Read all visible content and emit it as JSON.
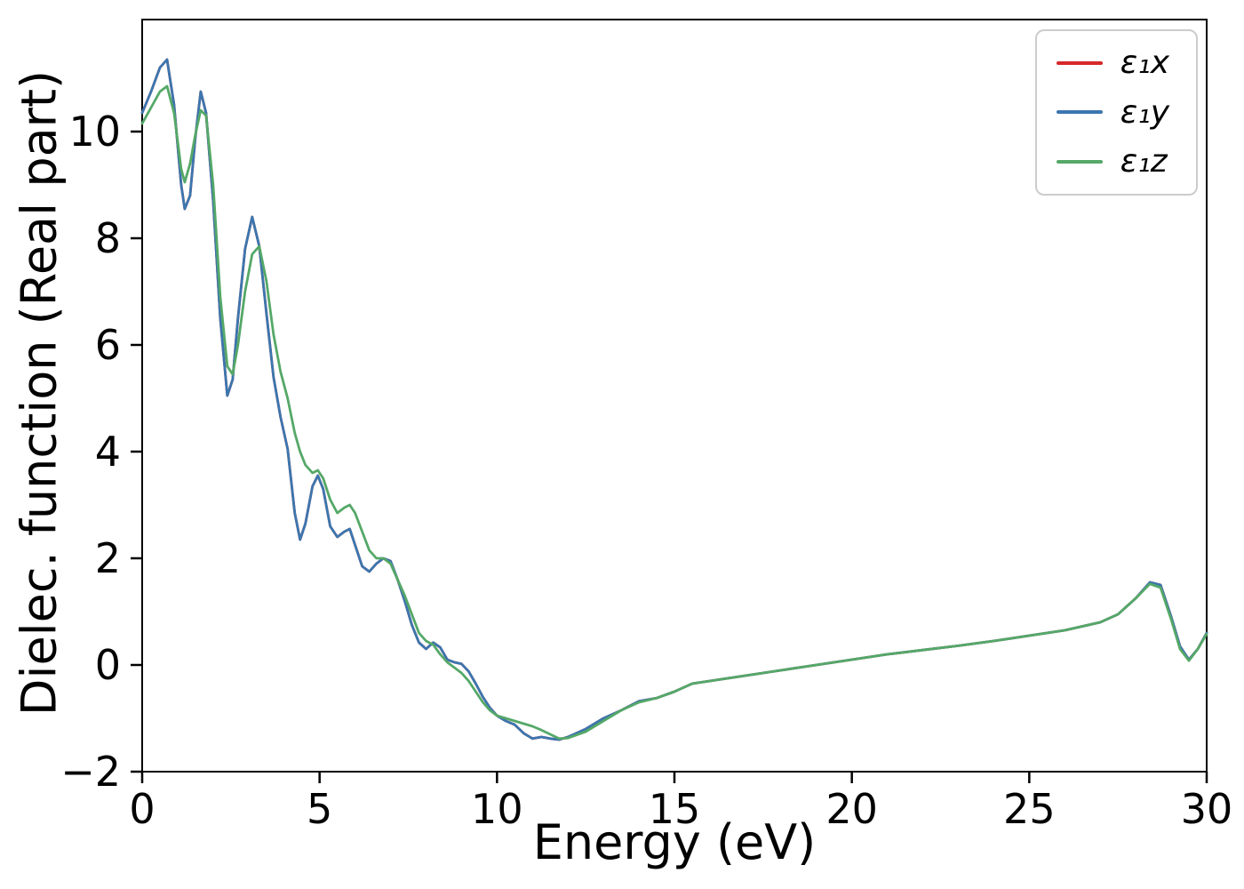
{
  "chart_data": {
    "type": "line",
    "title": "",
    "xlabel": "Energy (eV)",
    "ylabel": "Dielec. function (Real part)",
    "xlim": [
      0,
      30
    ],
    "ylim": [
      -2,
      12.1
    ],
    "grid": false,
    "legend_position": "upper right",
    "xticks": [
      0,
      5,
      10,
      15,
      20,
      25,
      30
    ],
    "xtick_labels": [
      "0",
      "5",
      "10",
      "15",
      "20",
      "25",
      "30"
    ],
    "yticks": [
      -2,
      0,
      2,
      4,
      6,
      8,
      10
    ],
    "ytick_labels": [
      "−2",
      "0",
      "2",
      "4",
      "6",
      "8",
      "10"
    ],
    "x": [
      0,
      0.25,
      0.5,
      0.7,
      0.9,
      1.1,
      1.2,
      1.35,
      1.5,
      1.65,
      1.8,
      2.0,
      2.2,
      2.4,
      2.55,
      2.7,
      2.9,
      3.1,
      3.3,
      3.5,
      3.7,
      3.9,
      4.1,
      4.3,
      4.45,
      4.6,
      4.8,
      4.95,
      5.1,
      5.3,
      5.5,
      5.7,
      5.85,
      6.0,
      6.2,
      6.4,
      6.6,
      6.8,
      7.0,
      7.2,
      7.4,
      7.6,
      7.8,
      8.0,
      8.2,
      8.4,
      8.6,
      8.8,
      9.0,
      9.2,
      9.4,
      9.6,
      9.8,
      10.0,
      10.25,
      10.5,
      10.75,
      11.0,
      11.25,
      11.5,
      11.75,
      12.0,
      12.5,
      13.0,
      13.5,
      14.0,
      14.5,
      15.0,
      15.5,
      16.0,
      17.0,
      18.0,
      19.0,
      20.0,
      21.0,
      22.0,
      23.0,
      24.0,
      25.0,
      26.0,
      27.0,
      27.5,
      28.0,
      28.4,
      28.7,
      29.0,
      29.25,
      29.5,
      29.75,
      30.0
    ],
    "series": [
      {
        "name": "epsilon1-x",
        "label": "ε₁x",
        "color": "#d62728",
        "y": [
          10.35,
          10.75,
          11.2,
          11.35,
          10.5,
          9.0,
          8.55,
          8.8,
          9.9,
          10.75,
          10.35,
          8.7,
          6.5,
          5.05,
          5.35,
          6.5,
          7.8,
          8.4,
          7.85,
          6.6,
          5.4,
          4.65,
          4.05,
          2.85,
          2.35,
          2.65,
          3.35,
          3.55,
          3.3,
          2.6,
          2.4,
          2.5,
          2.55,
          2.25,
          1.85,
          1.75,
          1.9,
          2.0,
          1.95,
          1.6,
          1.2,
          0.75,
          0.42,
          0.3,
          0.42,
          0.33,
          0.1,
          0.05,
          0.02,
          -0.12,
          -0.35,
          -0.6,
          -0.8,
          -0.95,
          -1.05,
          -1.12,
          -1.28,
          -1.38,
          -1.35,
          -1.38,
          -1.4,
          -1.35,
          -1.2,
          -1.0,
          -0.85,
          -0.68,
          -0.62,
          -0.5,
          -0.35,
          -0.3,
          -0.2,
          -0.1,
          0.0,
          0.1,
          0.2,
          0.28,
          0.36,
          0.45,
          0.55,
          0.65,
          0.8,
          0.95,
          1.25,
          1.55,
          1.5,
          0.9,
          0.35,
          0.1,
          0.3,
          0.6
        ]
      },
      {
        "name": "epsilon1-y",
        "label": "ε₁y",
        "color": "#3b76af",
        "y": [
          10.35,
          10.75,
          11.2,
          11.35,
          10.5,
          9.0,
          8.55,
          8.8,
          9.9,
          10.75,
          10.35,
          8.7,
          6.5,
          5.05,
          5.35,
          6.5,
          7.8,
          8.4,
          7.85,
          6.6,
          5.4,
          4.65,
          4.05,
          2.85,
          2.35,
          2.65,
          3.35,
          3.55,
          3.3,
          2.6,
          2.4,
          2.5,
          2.55,
          2.25,
          1.85,
          1.75,
          1.9,
          2.0,
          1.95,
          1.6,
          1.2,
          0.75,
          0.42,
          0.3,
          0.42,
          0.33,
          0.1,
          0.05,
          0.02,
          -0.12,
          -0.35,
          -0.6,
          -0.8,
          -0.95,
          -1.05,
          -1.12,
          -1.28,
          -1.38,
          -1.35,
          -1.38,
          -1.4,
          -1.35,
          -1.2,
          -1.0,
          -0.85,
          -0.68,
          -0.62,
          -0.5,
          -0.35,
          -0.3,
          -0.2,
          -0.1,
          0.0,
          0.1,
          0.2,
          0.28,
          0.36,
          0.45,
          0.55,
          0.65,
          0.8,
          0.95,
          1.25,
          1.55,
          1.5,
          0.9,
          0.35,
          0.1,
          0.3,
          0.6
        ]
      },
      {
        "name": "epsilon1-z",
        "label": "ε₁z",
        "color": "#55a868",
        "y": [
          10.15,
          10.45,
          10.75,
          10.85,
          10.35,
          9.3,
          9.05,
          9.4,
          9.95,
          10.4,
          10.3,
          9.0,
          6.9,
          5.6,
          5.45,
          6.0,
          7.0,
          7.7,
          7.85,
          7.2,
          6.2,
          5.5,
          5.0,
          4.35,
          4.0,
          3.75,
          3.6,
          3.65,
          3.5,
          3.1,
          2.85,
          2.95,
          3.0,
          2.85,
          2.5,
          2.15,
          2.0,
          2.0,
          1.9,
          1.6,
          1.3,
          0.95,
          0.6,
          0.45,
          0.38,
          0.2,
          0.05,
          -0.05,
          -0.15,
          -0.3,
          -0.5,
          -0.7,
          -0.85,
          -0.95,
          -1.0,
          -1.05,
          -1.1,
          -1.15,
          -1.22,
          -1.3,
          -1.38,
          -1.37,
          -1.25,
          -1.05,
          -0.85,
          -0.7,
          -0.62,
          -0.5,
          -0.35,
          -0.3,
          -0.2,
          -0.1,
          0.0,
          0.1,
          0.2,
          0.28,
          0.36,
          0.45,
          0.55,
          0.65,
          0.8,
          0.95,
          1.25,
          1.52,
          1.45,
          0.85,
          0.3,
          0.08,
          0.3,
          0.58
        ]
      }
    ]
  }
}
